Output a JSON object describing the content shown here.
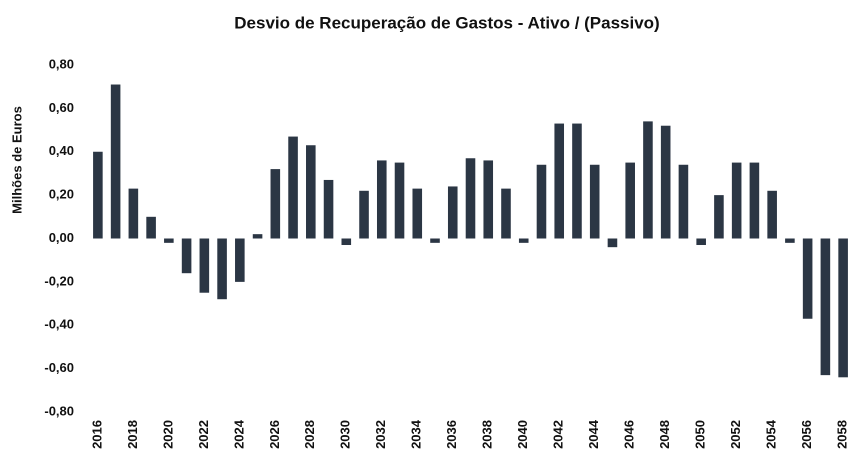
{
  "chart_data": {
    "type": "bar",
    "title": "Desvio de Recuperação de Gastos - Ativo / (Passivo)",
    "y_label": "Milhões de Euros",
    "categories": [
      "2016",
      null,
      "2018",
      null,
      "2020",
      null,
      "2022",
      null,
      "2024",
      null,
      "2026",
      null,
      "2028",
      null,
      "2030",
      null,
      "2032",
      null,
      "2034",
      null,
      "2036",
      null,
      "2038",
      null,
      "2040",
      null,
      "2042",
      null,
      "2044",
      null,
      "2046",
      null,
      "2048",
      null,
      "2050",
      null,
      "2052",
      null,
      "2054",
      null,
      "2056",
      null,
      "2058"
    ],
    "values": [
      0.4,
      0.71,
      0.23,
      0.1,
      -0.02,
      -0.16,
      -0.25,
      -0.28,
      -0.2,
      0.02,
      0.32,
      0.47,
      0.43,
      0.27,
      -0.03,
      0.22,
      0.36,
      0.35,
      0.23,
      -0.02,
      0.24,
      0.37,
      0.36,
      0.23,
      -0.02,
      0.34,
      0.53,
      0.53,
      0.34,
      -0.04,
      0.35,
      0.54,
      0.52,
      0.34,
      -0.03,
      0.2,
      0.35,
      0.35,
      0.22,
      -0.02,
      -0.37,
      -0.63,
      -0.64
    ],
    "color": "#2b3644",
    "ylim": [
      -0.8,
      0.8
    ],
    "yticks": [
      {
        "value": -0.8,
        "label": "-0,80"
      },
      {
        "value": -0.6,
        "label": "-0,60"
      },
      {
        "value": -0.4,
        "label": "-0,40"
      },
      {
        "value": -0.2,
        "label": "-0,20"
      },
      {
        "value": 0,
        "label": "0,00"
      },
      {
        "value": 0.2,
        "label": "0,20"
      },
      {
        "value": 0.4,
        "label": "0,40"
      },
      {
        "value": 0.6,
        "label": "0,60"
      },
      {
        "value": 0.8,
        "label": "0,80"
      }
    ],
    "grid": false
  }
}
